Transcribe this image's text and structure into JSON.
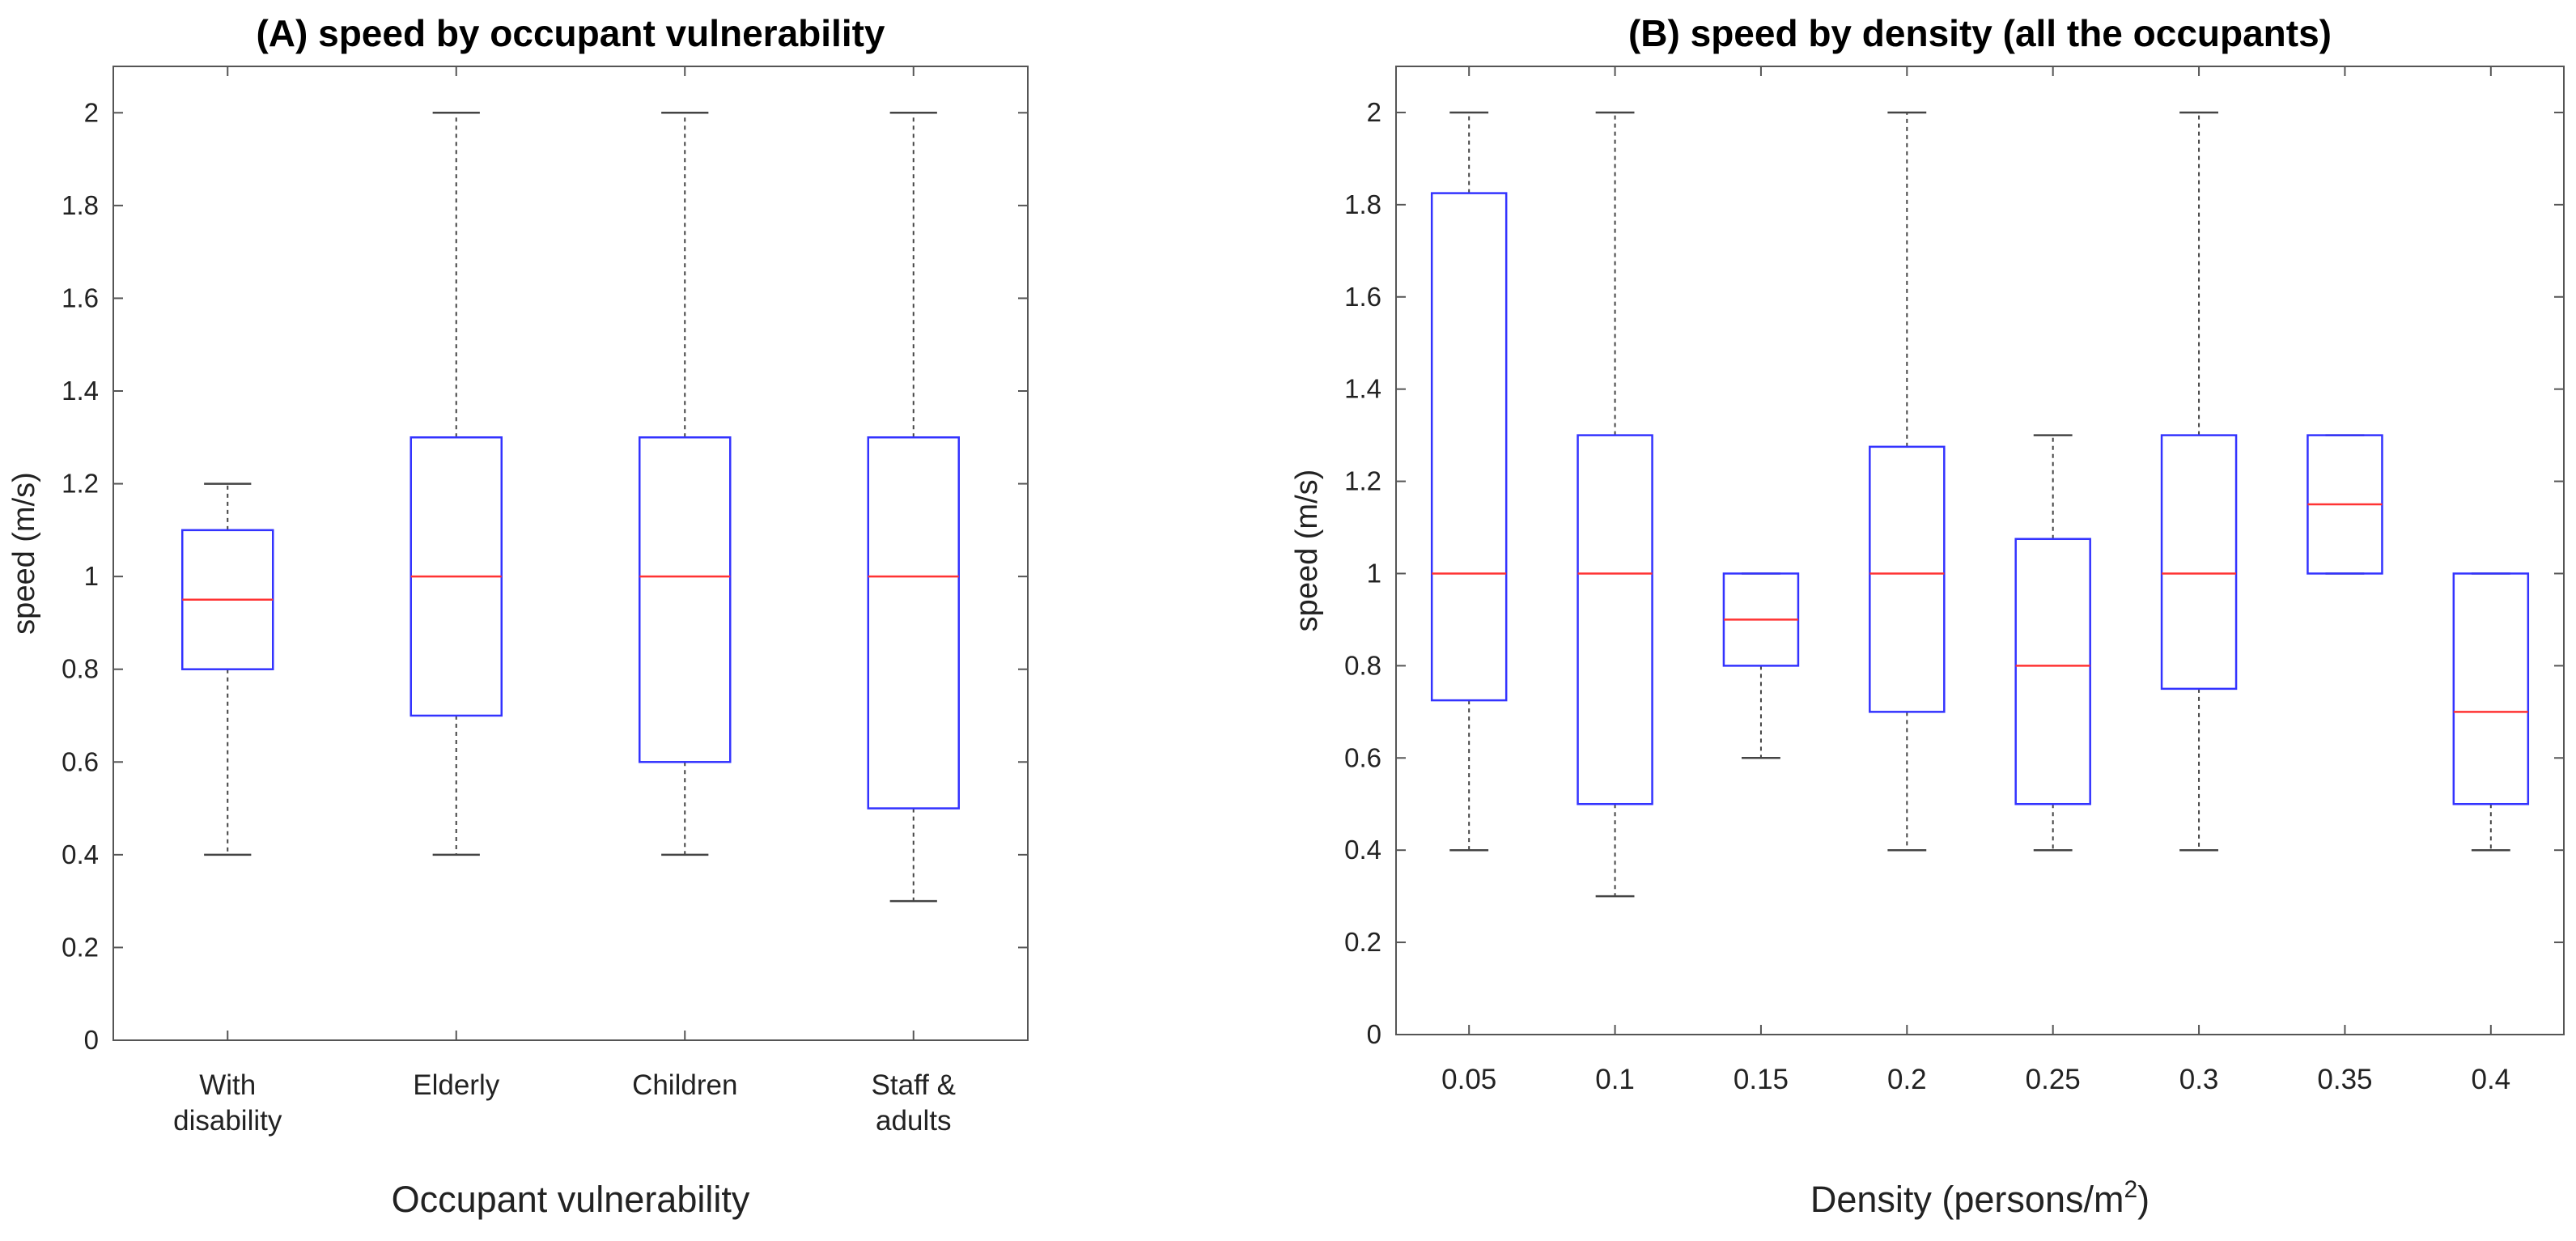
{
  "chart_data": [
    {
      "type": "boxplot",
      "title": "(A) speed by occupant vulnerability",
      "xlabel": "Occupant vulnerability",
      "ylabel": "speed (m/s)",
      "ylim": [
        0,
        2.1
      ],
      "yticks": [
        0,
        0.2,
        0.4,
        0.6,
        0.8,
        1,
        1.2,
        1.4,
        1.6,
        1.8,
        2
      ],
      "ytick_labels": [
        "0",
        "0.2",
        "0.4",
        "0.6",
        "0.8",
        "1",
        "1.2",
        "1.4",
        "1.6",
        "1.8",
        "2"
      ],
      "categories": [
        [
          "With",
          "disability"
        ],
        [
          "Elderly"
        ],
        [
          "Children"
        ],
        [
          "Staff &",
          "adults"
        ]
      ],
      "boxes": [
        {
          "min": 0.4,
          "q1": 0.8,
          "median": 0.95,
          "q3": 1.1,
          "max": 1.2
        },
        {
          "min": 0.4,
          "q1": 0.7,
          "median": 1.0,
          "q3": 1.3,
          "max": 2.0
        },
        {
          "min": 0.4,
          "q1": 0.6,
          "median": 1.0,
          "q3": 1.3,
          "max": 2.0
        },
        {
          "min": 0.3,
          "q1": 0.5,
          "median": 1.0,
          "q3": 1.3,
          "max": 2.0
        }
      ],
      "colors": {
        "box": "#3333ff",
        "median": "#ff3333",
        "whisker": "#444444",
        "axis": "#555555"
      }
    },
    {
      "type": "boxplot",
      "title": "(B) speed by density (all the occupants)",
      "xlabel": "Density (persons/m",
      "xlabel_sup": "2",
      "xlabel_end": ")",
      "ylabel": "speed (m/s)",
      "ylim": [
        0,
        2.1
      ],
      "yticks": [
        0,
        0.2,
        0.4,
        0.6,
        0.8,
        1,
        1.2,
        1.4,
        1.6,
        1.8,
        2
      ],
      "ytick_labels": [
        "0",
        "0.2",
        "0.4",
        "0.6",
        "0.8",
        "1",
        "1.2",
        "1.4",
        "1.6",
        "1.8",
        "2"
      ],
      "categories": [
        [
          "0.05"
        ],
        [
          "0.1"
        ],
        [
          "0.15"
        ],
        [
          "0.2"
        ],
        [
          "0.25"
        ],
        [
          "0.3"
        ],
        [
          "0.35"
        ],
        [
          "0.4"
        ]
      ],
      "boxes": [
        {
          "min": 0.4,
          "q1": 0.725,
          "median": 1.0,
          "q3": 1.825,
          "max": 2.0
        },
        {
          "min": 0.3,
          "q1": 0.5,
          "median": 1.0,
          "q3": 1.3,
          "max": 2.0
        },
        {
          "min": 0.6,
          "q1": 0.8,
          "median": 0.9,
          "q3": 1.0,
          "max": 1.0
        },
        {
          "min": 0.4,
          "q1": 0.7,
          "median": 1.0,
          "q3": 1.275,
          "max": 2.0
        },
        {
          "min": 0.4,
          "q1": 0.5,
          "median": 0.8,
          "q3": 1.075,
          "max": 1.3
        },
        {
          "min": 0.4,
          "q1": 0.75,
          "median": 1.0,
          "q3": 1.3,
          "max": 2.0
        },
        {
          "min": 1.0,
          "q1": 1.0,
          "median": 1.15,
          "q3": 1.3,
          "max": 1.3
        },
        {
          "min": 0.4,
          "q1": 0.5,
          "median": 0.7,
          "q3": 1.0,
          "max": 1.0
        }
      ],
      "colors": {
        "box": "#3333ff",
        "median": "#ff3333",
        "whisker": "#444444",
        "axis": "#555555"
      }
    }
  ]
}
